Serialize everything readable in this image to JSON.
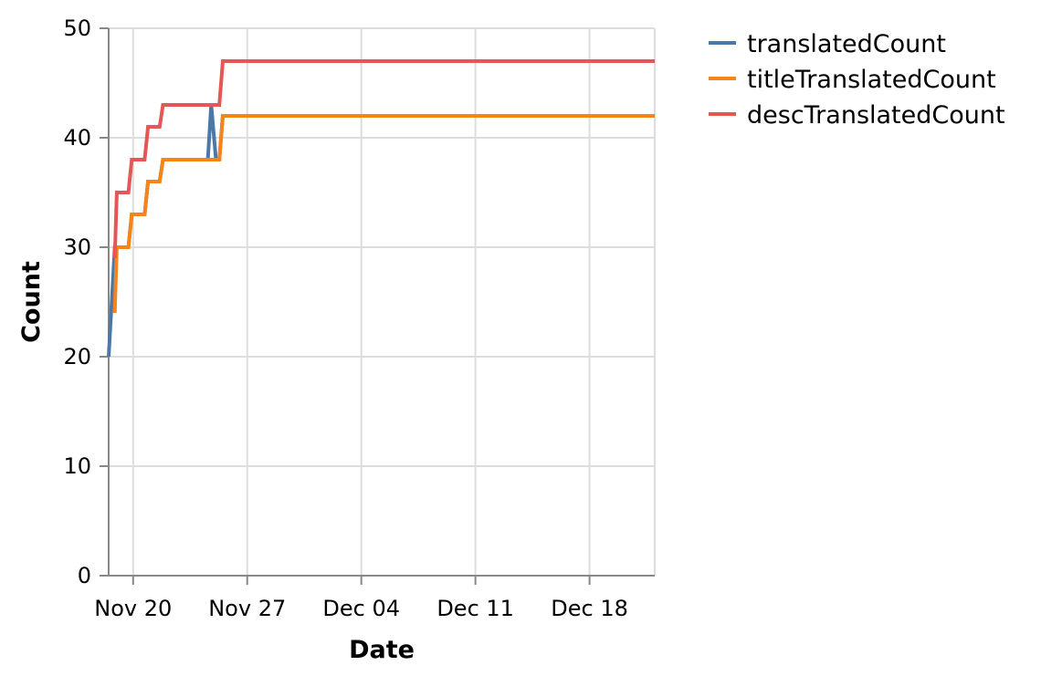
{
  "chart_data": {
    "type": "line",
    "title": "",
    "xlabel": "Date",
    "ylabel": "Count",
    "x_axis": "date",
    "xlim": [
      "2019-11-18T12:00",
      "2019-12-22"
    ],
    "ylim": [
      0,
      50
    ],
    "y_ticks": [
      0,
      10,
      20,
      30,
      40,
      50
    ],
    "x_ticks": [
      {
        "date": "2019-11-20",
        "label": "Nov 20"
      },
      {
        "date": "2019-11-27",
        "label": "Nov 27"
      },
      {
        "date": "2019-12-04",
        "label": "Dec 04"
      },
      {
        "date": "2019-12-11",
        "label": "Dec 11"
      },
      {
        "date": "2019-12-18",
        "label": "Dec 18"
      }
    ],
    "grid": true,
    "legend_position": "right",
    "series": [
      {
        "name": "translatedCount",
        "color": "#4c78a8",
        "points": [
          {
            "x": "2019-11-18T12:00",
            "y": 20
          },
          {
            "x": "2019-11-18T21:00",
            "y": 30
          },
          {
            "x": "2019-11-19T17:00",
            "y": 30
          },
          {
            "x": "2019-11-19T22:00",
            "y": 33
          },
          {
            "x": "2019-11-20T17:00",
            "y": 33
          },
          {
            "x": "2019-11-20T22:00",
            "y": 36
          },
          {
            "x": "2019-11-21T15:00",
            "y": 36
          },
          {
            "x": "2019-11-21T20:00",
            "y": 38
          },
          {
            "x": "2019-11-24T14:00",
            "y": 38
          },
          {
            "x": "2019-11-24T19:00",
            "y": 43
          },
          {
            "x": "2019-11-25T02:00",
            "y": 38
          },
          {
            "x": "2019-11-25T07:00",
            "y": 38
          },
          {
            "x": "2019-11-25T12:00",
            "y": 42
          },
          {
            "x": "2019-12-22",
            "y": 42
          }
        ]
      },
      {
        "name": "titleTranslatedCount",
        "color": "#f58518",
        "points": [
          {
            "x": "2019-11-18T21:00",
            "y": 24
          },
          {
            "x": "2019-11-19T00:00",
            "y": 30
          },
          {
            "x": "2019-11-19T17:00",
            "y": 30
          },
          {
            "x": "2019-11-19T22:00",
            "y": 33
          },
          {
            "x": "2019-11-20T17:00",
            "y": 33
          },
          {
            "x": "2019-11-20T22:00",
            "y": 36
          },
          {
            "x": "2019-11-21T15:00",
            "y": 36
          },
          {
            "x": "2019-11-21T20:00",
            "y": 38
          },
          {
            "x": "2019-11-25T07:00",
            "y": 38
          },
          {
            "x": "2019-11-25T12:00",
            "y": 42
          },
          {
            "x": "2019-12-22",
            "y": 42
          }
        ]
      },
      {
        "name": "descTranslatedCount",
        "color": "#e45756",
        "points": [
          {
            "x": "2019-11-18T21:00",
            "y": 29
          },
          {
            "x": "2019-11-19T00:00",
            "y": 35
          },
          {
            "x": "2019-11-19T17:00",
            "y": 35
          },
          {
            "x": "2019-11-19T22:00",
            "y": 38
          },
          {
            "x": "2019-11-20T17:00",
            "y": 38
          },
          {
            "x": "2019-11-20T22:00",
            "y": 41
          },
          {
            "x": "2019-11-21T15:00",
            "y": 41
          },
          {
            "x": "2019-11-21T20:00",
            "y": 43
          },
          {
            "x": "2019-11-25T07:00",
            "y": 43
          },
          {
            "x": "2019-11-25T12:00",
            "y": 47
          },
          {
            "x": "2019-12-22",
            "y": 47
          }
        ]
      }
    ]
  }
}
